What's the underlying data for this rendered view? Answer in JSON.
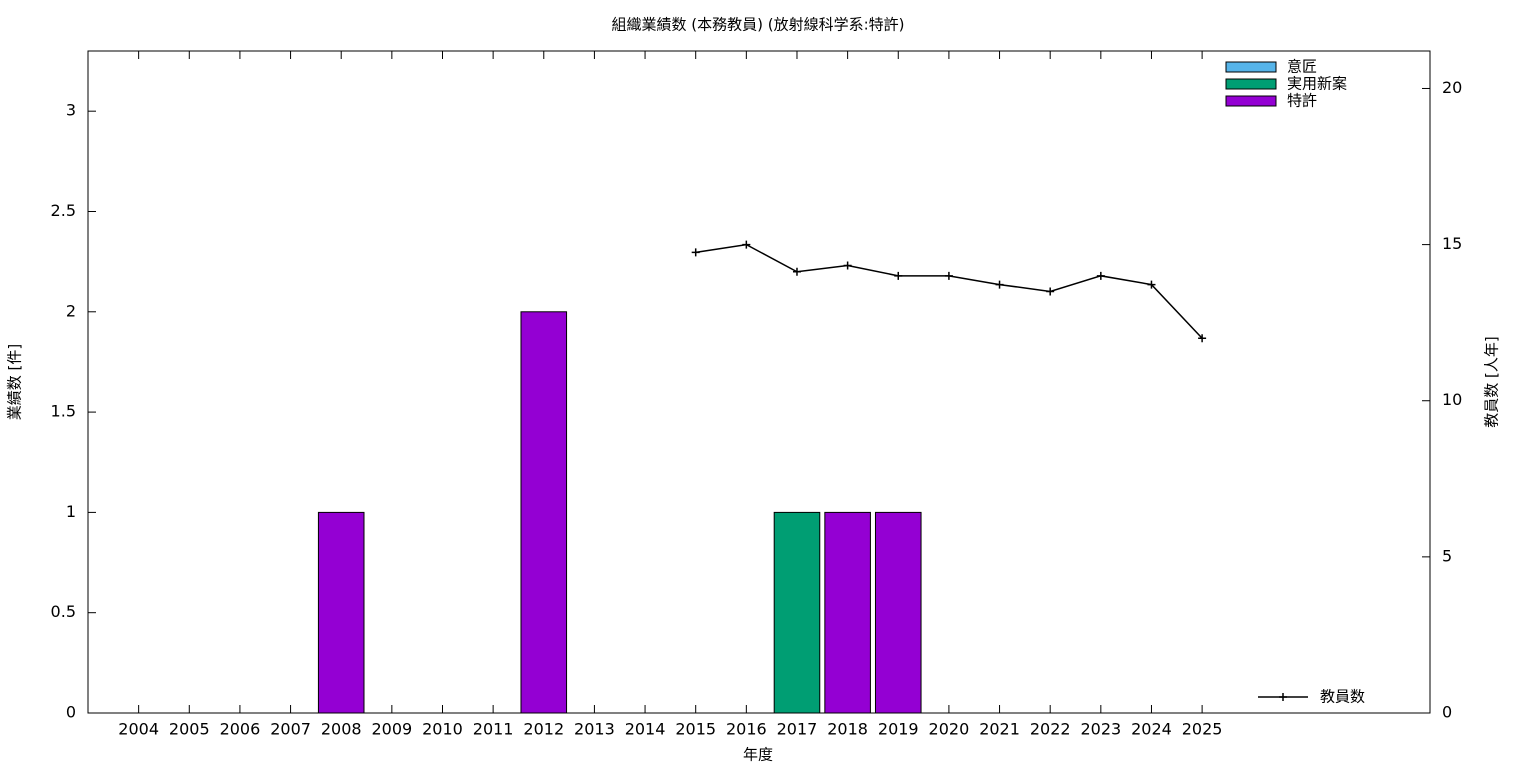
{
  "chart_data": {
    "type": "bar",
    "stacked": true,
    "title": "組織業績数 (本務教員) (放射線科学系:特許)",
    "x_label": "年度",
    "y_label": "業績数 [件]",
    "y2_label": "教員数 [人年]",
    "categories": [
      "2004",
      "2005",
      "2006",
      "2007",
      "2008",
      "2009",
      "2010",
      "2011",
      "2012",
      "2013",
      "2014",
      "2015",
      "2016",
      "2017",
      "2018",
      "2019",
      "2020",
      "2021",
      "2022",
      "2023",
      "2024",
      "2025"
    ],
    "series": [
      {
        "name": "意匠",
        "color": "#56b4e9",
        "values": [
          0,
          0,
          0,
          0,
          0,
          0,
          0,
          0,
          0,
          0,
          0,
          0,
          0,
          0,
          0,
          0,
          0,
          0,
          0,
          0,
          0,
          0
        ]
      },
      {
        "name": "実用新案",
        "color": "#009e73",
        "values": [
          0,
          0,
          0,
          0,
          0,
          0,
          0,
          0,
          0,
          0,
          0,
          0,
          0,
          1,
          0,
          0,
          0,
          0,
          0,
          0,
          0,
          0
        ]
      },
      {
        "name": "特許",
        "color": "#9400d3",
        "values": [
          0,
          0,
          0,
          0,
          1,
          0,
          0,
          0,
          2,
          0,
          0,
          0,
          0,
          0,
          1,
          1,
          0,
          0,
          0,
          0,
          0,
          0
        ]
      },
      {
        "name": "教員数",
        "type": "line",
        "axis": "y2",
        "color": "#000000",
        "values": [
          null,
          null,
          null,
          null,
          null,
          null,
          null,
          null,
          null,
          null,
          null,
          14.75,
          15,
          14.13,
          14.33,
          14,
          14,
          13.72,
          13.5,
          14,
          13.72,
          12
        ]
      }
    ],
    "ylim": [
      0,
      3.3
    ],
    "yticks": [
      0,
      0.5,
      1,
      1.5,
      2,
      2.5,
      3
    ],
    "y2lim": [
      0,
      21.2
    ],
    "y2ticks": [
      0,
      5,
      10,
      15,
      20
    ],
    "legend": "top-right"
  }
}
